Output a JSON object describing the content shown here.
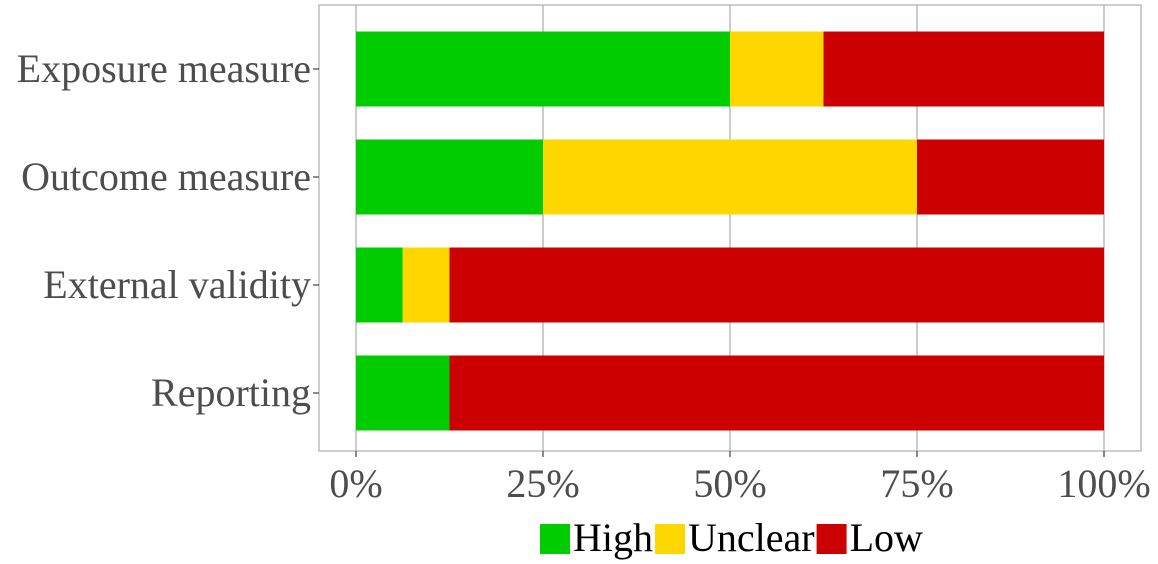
{
  "chart_data": {
    "type": "bar",
    "orientation": "horizontal",
    "stacked": true,
    "categories": [
      "Exposure measure",
      "Outcome measure",
      "External validity",
      "Reporting"
    ],
    "series": [
      {
        "name": "High",
        "color": "#00cc00",
        "values": [
          50,
          25,
          6.25,
          12.5
        ]
      },
      {
        "name": "Unclear",
        "color": "#ffd700",
        "values": [
          12.5,
          50,
          6.25,
          0
        ]
      },
      {
        "name": "Low",
        "color": "#cc0000",
        "values": [
          37.5,
          25,
          87.5,
          87.5
        ]
      }
    ],
    "x_ticks": [
      "0%",
      "25%",
      "50%",
      "75%",
      "100%"
    ],
    "x_tick_values": [
      0,
      25,
      50,
      75,
      100
    ],
    "xlim": [
      0,
      100
    ],
    "title": "",
    "xlabel": "",
    "ylabel": "",
    "grid": true,
    "legend_position": "bottom"
  }
}
